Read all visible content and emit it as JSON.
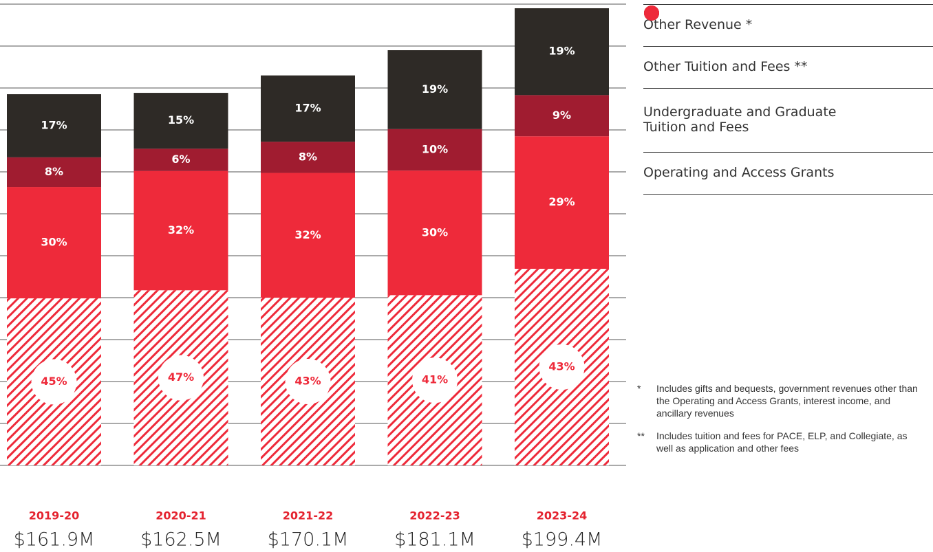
{
  "chart_data": {
    "type": "bar",
    "categories": [
      "2019-20",
      "2020-21",
      "2021-22",
      "2022-23",
      "2023-24"
    ],
    "values": [
      161.9,
      162.5,
      170.1,
      181.1,
      199.4
    ],
    "value_labels": [
      "$161.9M",
      "$162.5M",
      "$170.1M",
      "$181.1M",
      "$199.4M"
    ],
    "series": [
      {
        "name": "Other Revenue *",
        "color": "#2e2a26",
        "values": [
          17,
          15,
          17,
          19,
          19
        ],
        "value_labels": [
          "17%",
          "15%",
          "17%",
          "19%",
          "19%"
        ]
      },
      {
        "name": "Other Tuition and Fees **",
        "color": "#a01c30",
        "values": [
          8,
          6,
          8,
          10,
          9
        ],
        "value_labels": [
          "8%",
          "6%",
          "8%",
          "10%",
          "9%"
        ]
      },
      {
        "name": "Undergraduate and Graduate Tuition and Fees",
        "color": "#ee2a3a",
        "values": [
          30,
          32,
          32,
          30,
          29
        ],
        "value_labels": [
          "30%",
          "32%",
          "32%",
          "30%",
          "29%"
        ]
      },
      {
        "name": "Operating and Access Grants",
        "color": "#ee2a3a",
        "pattern": "hatch",
        "values": [
          45,
          47,
          43,
          41,
          43
        ],
        "value_labels": [
          "45%",
          "47%",
          "43%",
          "41%",
          "43%"
        ]
      }
    ],
    "notes": [
      {
        "mark": "*",
        "text": "Includes gifts and bequests, government revenues other than the Operating and Access Grants, interest income, and ancillary revenues"
      },
      {
        "mark": "**",
        "text": "Includes tuition and fees for PACE, ELP, and Collegiate, as well as application and other fees"
      }
    ]
  }
}
